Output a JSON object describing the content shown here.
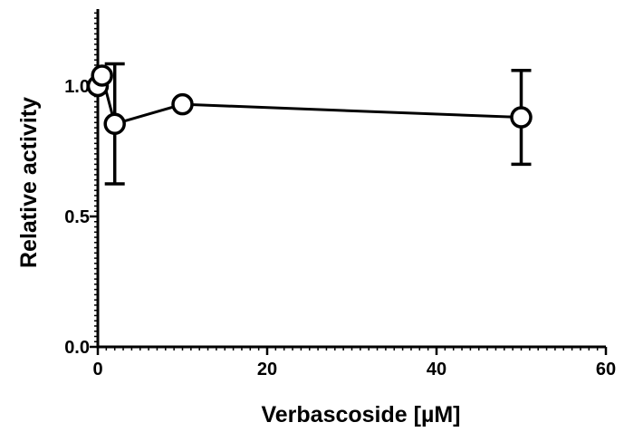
{
  "chart_data": {
    "type": "scatter",
    "title": "",
    "xlabel": "Verbascoside [µM]",
    "ylabel": "Relative activity",
    "xlim": [
      0,
      60
    ],
    "ylim": [
      0,
      1.3
    ],
    "xticks": [
      0,
      20,
      40,
      60
    ],
    "yticks": [
      0.0,
      0.5,
      1.0
    ],
    "xtick_labels": [
      "0",
      "20",
      "40",
      "60"
    ],
    "ytick_labels": [
      "0.0",
      "0.5",
      "1.0"
    ],
    "grid": false,
    "legend": "none",
    "series": [
      {
        "x": [
          0,
          0.5,
          2,
          10,
          50
        ],
        "y": [
          1.0,
          1.04,
          0.855,
          0.93,
          0.88
        ],
        "error": [
          0,
          0,
          0.23,
          0,
          0.18
        ],
        "marker": "open-circle",
        "connected": true
      }
    ],
    "colors": {
      "line": "#000000",
      "marker_fill": "#ffffff"
    }
  }
}
